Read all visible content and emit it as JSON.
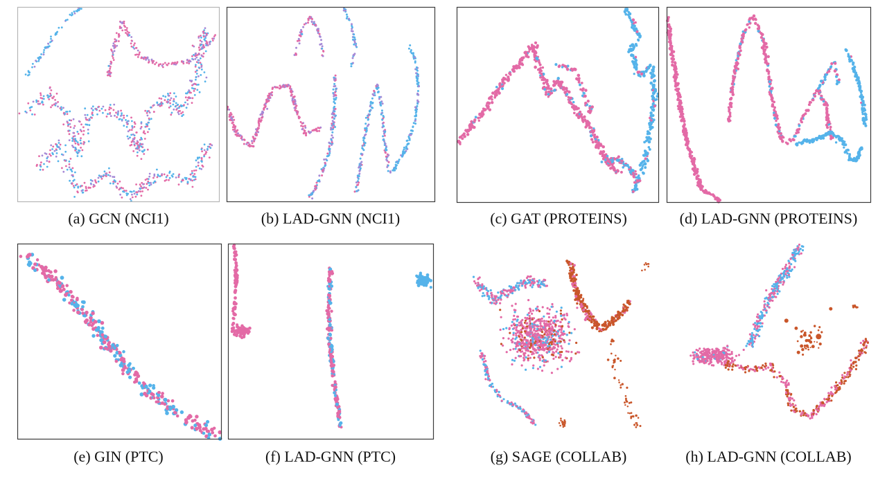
{
  "colors": {
    "pink": "#e36aa6",
    "blue": "#55b3ea",
    "purple": "#a689d6",
    "orange": "#c9562a"
  },
  "chart_data": [
    {
      "id": "a",
      "type": "scatter",
      "caption": "(a) GCN (NCI1)",
      "classes": [
        "pink",
        "blue",
        "purple"
      ]
    },
    {
      "id": "b",
      "type": "scatter",
      "caption": "(b) LAD-GNN (NCI1)",
      "classes": [
        "pink",
        "blue",
        "purple"
      ]
    },
    {
      "id": "c",
      "type": "scatter",
      "caption": "(c) GAT (PROTEINS)",
      "classes": [
        "pink",
        "blue"
      ]
    },
    {
      "id": "d",
      "type": "scatter",
      "caption": "(d) LAD-GNN (PROTEINS)",
      "classes": [
        "pink",
        "blue"
      ]
    },
    {
      "id": "e",
      "type": "scatter",
      "caption": "(e) GIN (PTC)",
      "classes": [
        "pink",
        "blue"
      ]
    },
    {
      "id": "f",
      "type": "scatter",
      "caption": "(f) LAD-GNN (PTC)",
      "classes": [
        "pink",
        "blue"
      ]
    },
    {
      "id": "g",
      "type": "scatter",
      "caption": "(g) SAGE (COLLAB)",
      "classes": [
        "pink",
        "blue",
        "orange"
      ]
    },
    {
      "id": "h",
      "type": "scatter",
      "caption": "(h) LAD-GNN (COLLAB)",
      "classes": [
        "pink",
        "blue",
        "orange"
      ]
    }
  ]
}
